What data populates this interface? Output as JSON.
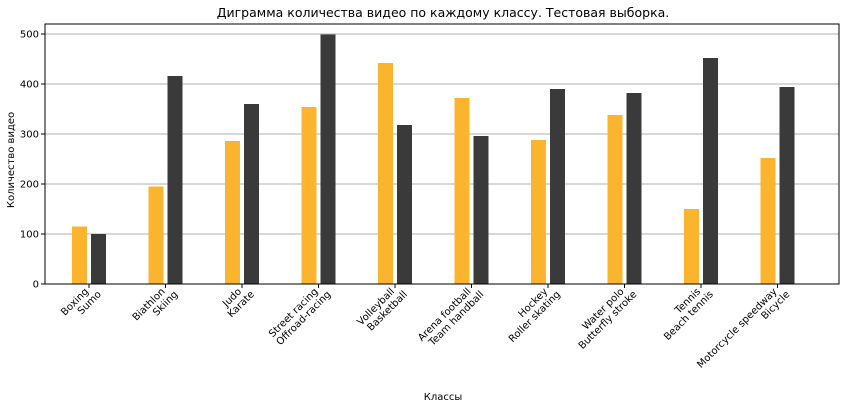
{
  "chart_data": {
    "type": "bar",
    "title": "Диграмма количества видео по каждому классу. Тестовая выборка.",
    "xlabel": "Классы",
    "ylabel": "Количество видео",
    "ylim": [
      0,
      520
    ],
    "yticks": [
      0,
      100,
      200,
      300,
      400,
      500
    ],
    "grid": "horizontal",
    "categories": [
      [
        "Boxing",
        "Sumo"
      ],
      [
        "Biathlon",
        "Skiing"
      ],
      [
        "Judo",
        "Karate"
      ],
      [
        "Street racing",
        "Offroad-racing"
      ],
      [
        "Volleyball",
        "Basketball"
      ],
      [
        "Arena football",
        "Team handball"
      ],
      [
        "Hockey",
        "Roller skating"
      ],
      [
        "Water polo",
        "Butterfly stroke"
      ],
      [
        "Tennis",
        "Beach tennis"
      ],
      [
        "Motorcycle speedway",
        "Bicycle"
      ]
    ],
    "series": [
      {
        "color": "#fbb42e",
        "values": [
          115,
          195,
          286,
          354,
          442,
          372,
          288,
          338,
          150,
          252
        ]
      },
      {
        "color": "#3a3a3a",
        "values": [
          100,
          416,
          360,
          499,
          318,
          296,
          390,
          382,
          452,
          394
        ]
      }
    ]
  }
}
